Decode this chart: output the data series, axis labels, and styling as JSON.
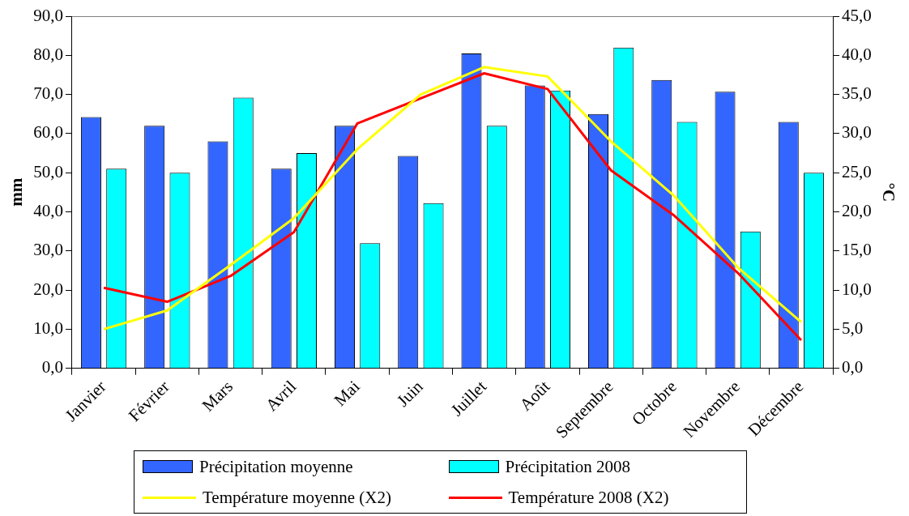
{
  "chart_data": {
    "type": "bar",
    "ylabel": "mm",
    "y2label": "°C",
    "categories": [
      "Janvier",
      "Février",
      "Mars",
      "Avril",
      "Mai",
      "Juin",
      "Juillet",
      "Août",
      "Septembre",
      "Octobre",
      "Novembre",
      "Décembre"
    ],
    "series": [
      {
        "name": "Précipitation moyenne",
        "color": "#3366ff",
        "values": [
          64.2,
          62,
          58,
          51,
          62,
          54.3,
          80.5,
          72.3,
          65,
          73.7,
          70.7,
          63
        ]
      },
      {
        "name": "Précipitation 2008",
        "color": "#00ffff",
        "values": [
          51,
          50,
          69.2,
          55,
          32,
          42.2,
          62,
          71,
          82,
          63,
          35,
          50
        ]
      },
      {
        "name": "Température moyenne (X2)",
        "type": "line",
        "axis": "y2",
        "color": "#ffff00",
        "values": [
          5,
          7.4,
          13.2,
          19.2,
          28,
          35,
          38.5,
          37.3,
          29,
          22,
          12.9,
          5.9
        ]
      },
      {
        "name": "Température 2008 (X2)",
        "type": "line",
        "axis": "y2",
        "color": "#ff0000",
        "values": [
          10.3,
          8.5,
          11.8,
          17.4,
          31.3,
          34.5,
          37.7,
          35.7,
          25.3,
          19.5,
          12.2,
          3.6
        ]
      }
    ],
    "ylim": [
      0,
      90
    ],
    "yticks": [
      {
        "value": 0,
        "label": "0,0"
      },
      {
        "value": 10,
        "label": "10,0"
      },
      {
        "value": 20,
        "label": "20,0"
      },
      {
        "value": 30,
        "label": "30,0"
      },
      {
        "value": 40,
        "label": "40,0"
      },
      {
        "value": 50,
        "label": "50,0"
      },
      {
        "value": 60,
        "label": "60,0"
      },
      {
        "value": 70,
        "label": "70,0"
      },
      {
        "value": 80,
        "label": "80,0"
      },
      {
        "value": 90,
        "label": "90,0"
      }
    ],
    "y2lim": [
      0,
      45
    ],
    "y2ticks": [
      {
        "value": 0,
        "label": "0,0"
      },
      {
        "value": 5,
        "label": "5,0"
      },
      {
        "value": 10,
        "label": "10,0"
      },
      {
        "value": 15,
        "label": "15,0"
      },
      {
        "value": 20,
        "label": "20,0"
      },
      {
        "value": 25,
        "label": "25,0"
      },
      {
        "value": 30,
        "label": "30,0"
      },
      {
        "value": 35,
        "label": "35,0"
      },
      {
        "value": 40,
        "label": "40,0"
      },
      {
        "value": 45,
        "label": "45,0"
      }
    ],
    "grid": false,
    "legend": "bottom",
    "marker": "none",
    "line_style": "solid"
  }
}
